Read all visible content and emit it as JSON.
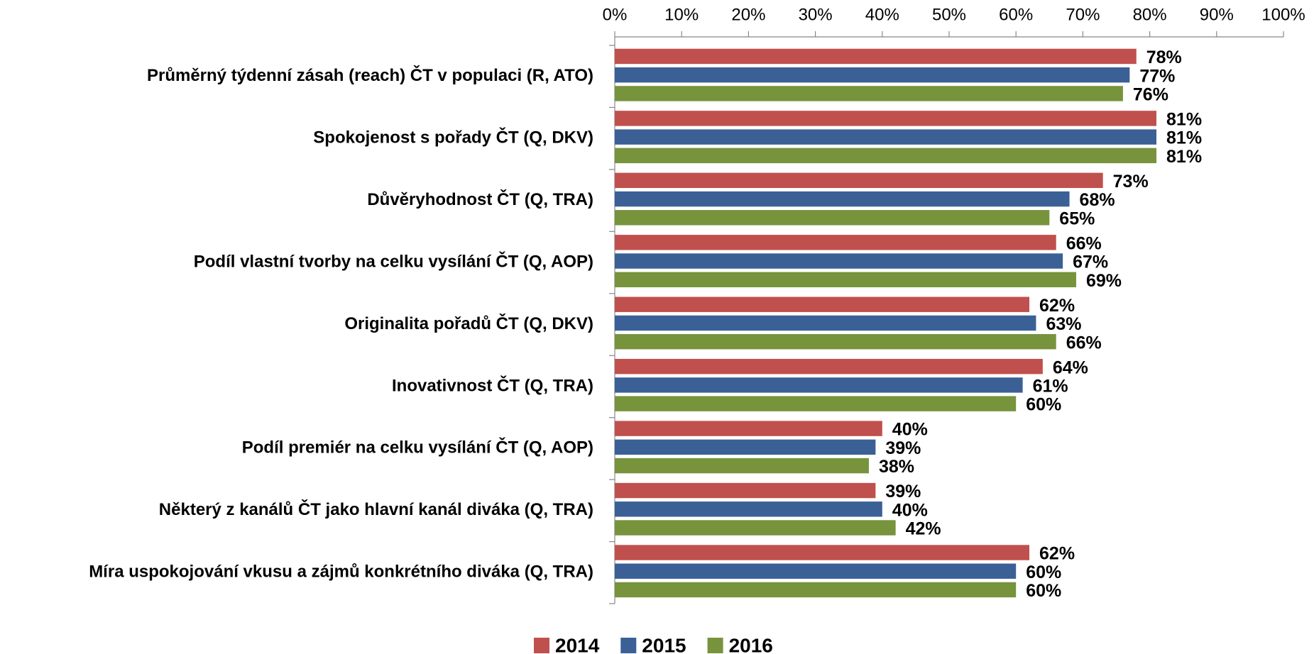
{
  "chart_data": {
    "type": "bar",
    "orientation": "horizontal",
    "categories": [
      "Průměrný týdenní zásah (reach) ČT v populaci (R, ATO)",
      "Spokojenost s pořady ČT (Q, DKV)",
      "Důvěryhodnost ČT (Q, TRA)",
      "Podíl vlastní tvorby na celku vysílání ČT (Q, AOP)",
      "Originalita pořadů ČT (Q, DKV)",
      "Inovativnost ČT (Q, TRA)",
      "Podíl premiér na celku vysílání ČT (Q, AOP)",
      "Některý z kanálů ČT jako hlavní kanál diváka (Q, TRA)",
      "Míra uspokojování vkusu a zájmů konkrétního diváka (Q, TRA)"
    ],
    "series": [
      {
        "name": "2014",
        "color": "#c0504d",
        "values": [
          78,
          81,
          73,
          66,
          62,
          64,
          40,
          39,
          62
        ],
        "value_labels": [
          "78%",
          "81%",
          "73%",
          "66%",
          "62%",
          "64%",
          "40%",
          "39%",
          "62%"
        ]
      },
      {
        "name": "2015",
        "color": "#3a6096",
        "values": [
          77,
          81,
          68,
          67,
          63,
          61,
          39,
          40,
          60
        ],
        "value_labels": [
          "77%",
          "81%",
          "68%",
          "67%",
          "63%",
          "61%",
          "39%",
          "40%",
          "60%"
        ]
      },
      {
        "name": "2016",
        "color": "#77933c",
        "values": [
          76,
          81,
          65,
          69,
          66,
          60,
          38,
          42,
          60
        ],
        "value_labels": [
          "76%",
          "81%",
          "65%",
          "69%",
          "66%",
          "60%",
          "38%",
          "42%",
          "60%"
        ]
      }
    ],
    "xlim": [
      0,
      100
    ],
    "xticks": [
      {
        "value": 0,
        "label": "0%"
      },
      {
        "value": 10,
        "label": "10%"
      },
      {
        "value": 20,
        "label": "20%"
      },
      {
        "value": 30,
        "label": "30%"
      },
      {
        "value": 40,
        "label": "40%"
      },
      {
        "value": 50,
        "label": "50%"
      },
      {
        "value": 60,
        "label": "60%"
      },
      {
        "value": 70,
        "label": "70%"
      },
      {
        "value": 80,
        "label": "80%"
      },
      {
        "value": 90,
        "label": "90%"
      },
      {
        "value": 100,
        "label": "100%"
      }
    ],
    "legend": "bottom"
  }
}
